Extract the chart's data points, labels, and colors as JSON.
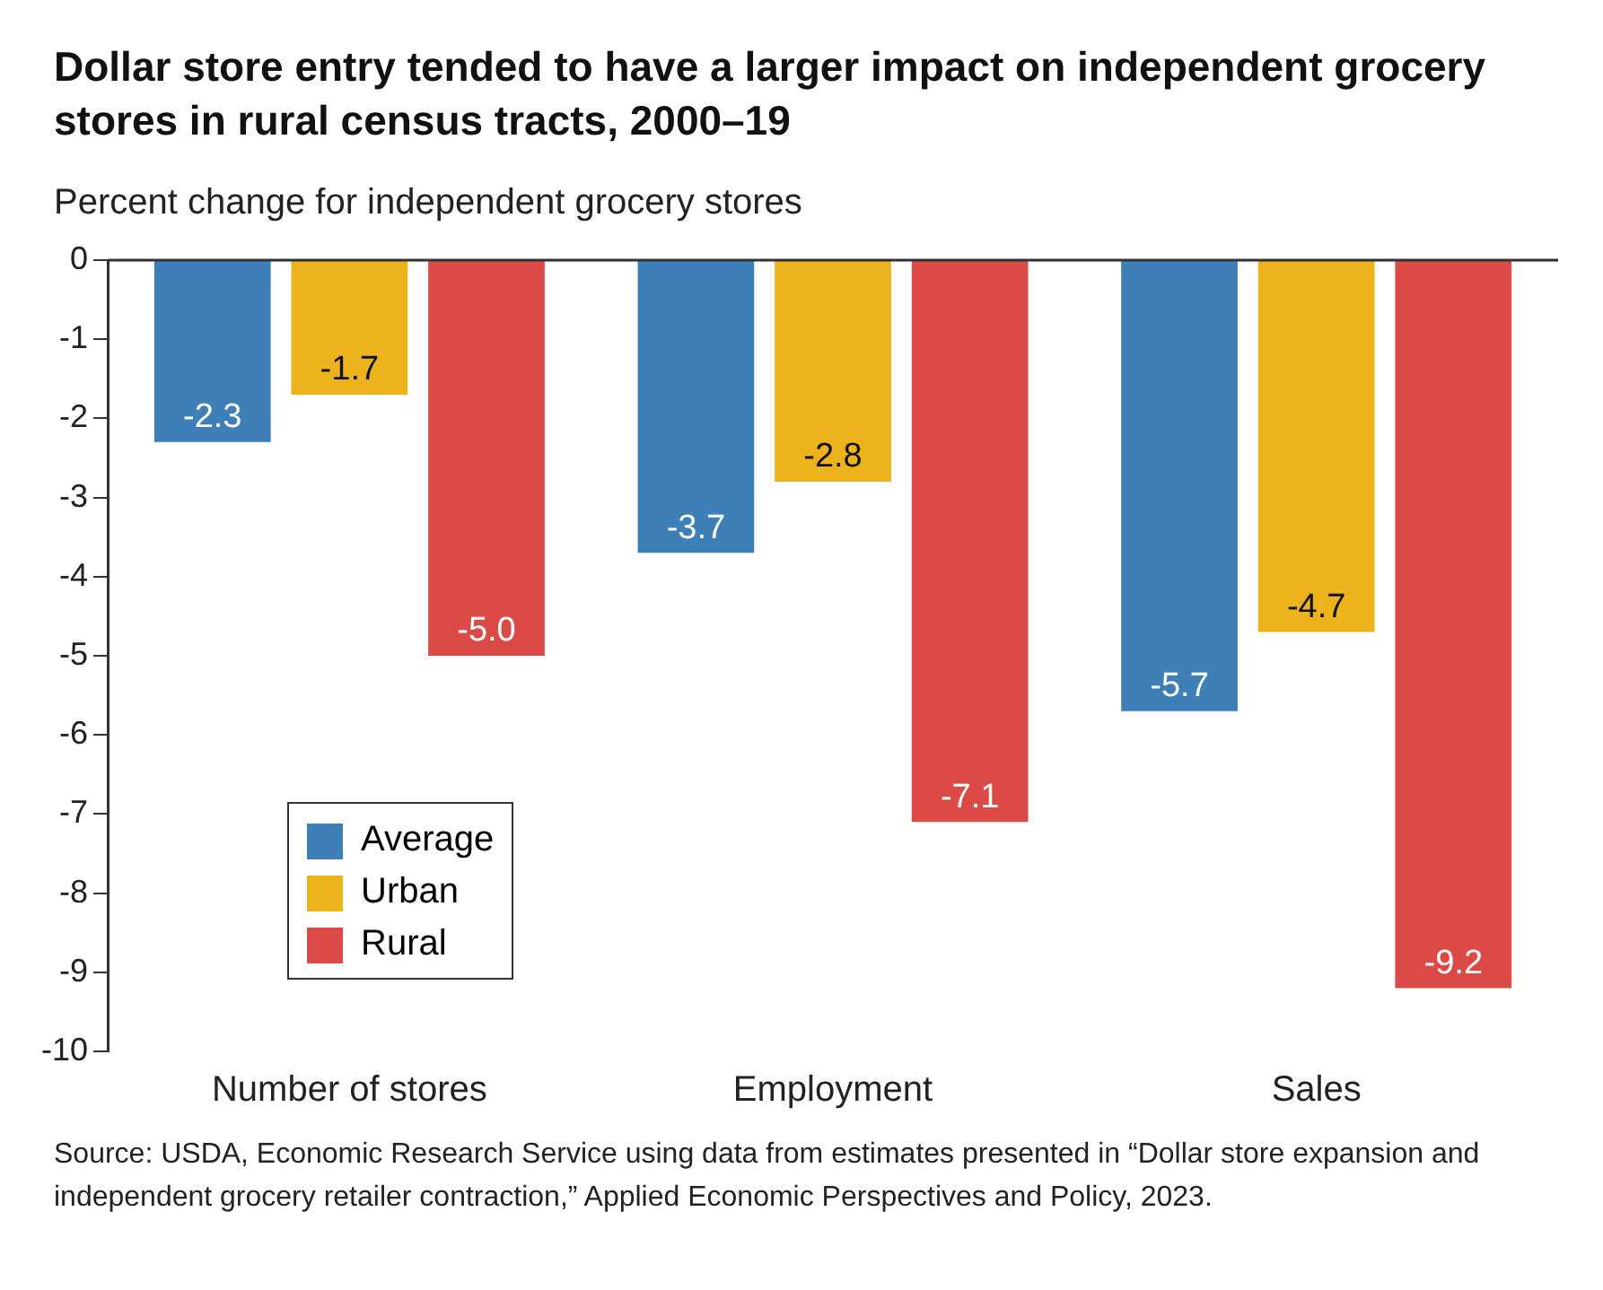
{
  "chart_data": {
    "type": "bar",
    "title": "Dollar store entry tended to have a larger impact on independent grocery stores in rural census tracts, 2000–19",
    "subtitle": "Percent change for independent grocery stores",
    "categories": [
      "Number of stores",
      "Employment",
      "Sales"
    ],
    "series": [
      {
        "name": "Average",
        "color": "#3f7fb8",
        "values": [
          -2.3,
          -3.7,
          -5.7
        ],
        "value_labels": [
          "-2.3",
          "-3.7",
          "-5.7"
        ]
      },
      {
        "name": "Urban",
        "color": "#ecb31c",
        "values": [
          -1.7,
          -2.8,
          -4.7
        ],
        "value_labels": [
          "-1.7",
          "-2.8",
          "-4.7"
        ]
      },
      {
        "name": "Rural",
        "color": "#dc4a47",
        "values": [
          -5.0,
          -7.1,
          -9.2
        ],
        "value_labels": [
          "-5.0",
          "-7.1",
          "-9.2"
        ]
      }
    ],
    "ylim": [
      -10,
      0
    ],
    "yticks": [
      0,
      -1,
      -2,
      -3,
      -4,
      -5,
      -6,
      -7,
      -8,
      -9,
      -10
    ],
    "grid": false,
    "legend": "bottom left",
    "annotations": [
      "Source: USDA, Economic Research Service using data from estimates presented in “Dollar store expansion and independent grocery retailer contraction,” Applied Economic Perspectives and Policy, 2023."
    ]
  }
}
